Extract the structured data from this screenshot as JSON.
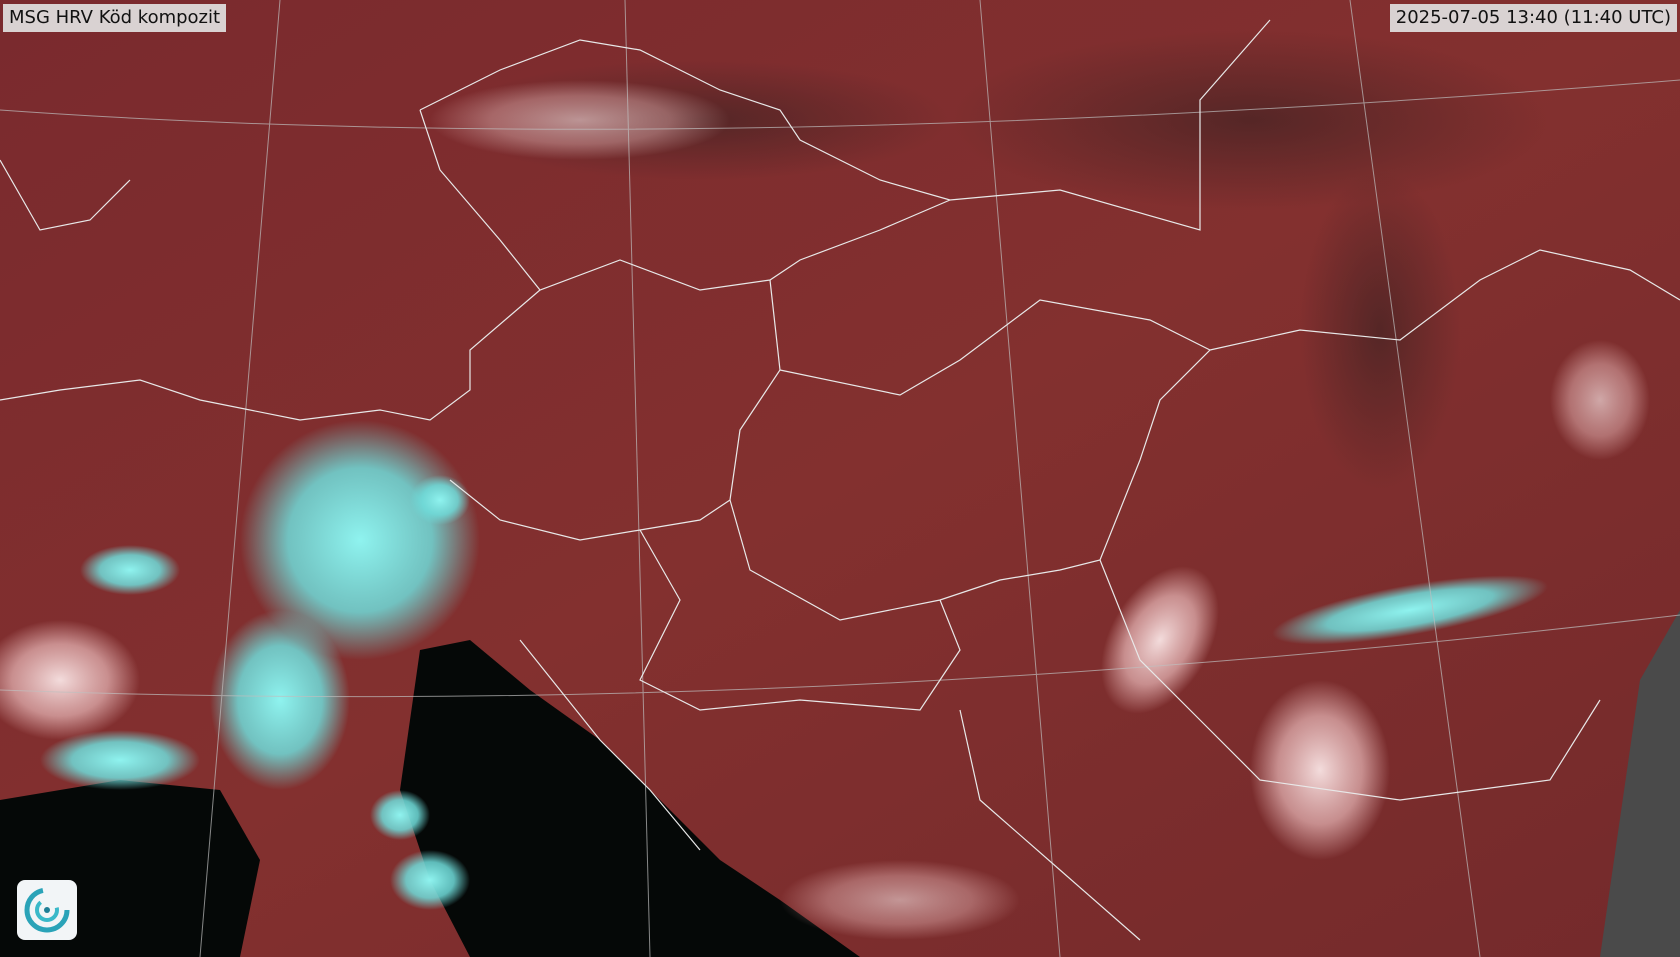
{
  "header": {
    "title": "MSG HRV Köd kompozit",
    "timestamp": "2025-07-05 13:40 (11:40 UTC)"
  }
}
